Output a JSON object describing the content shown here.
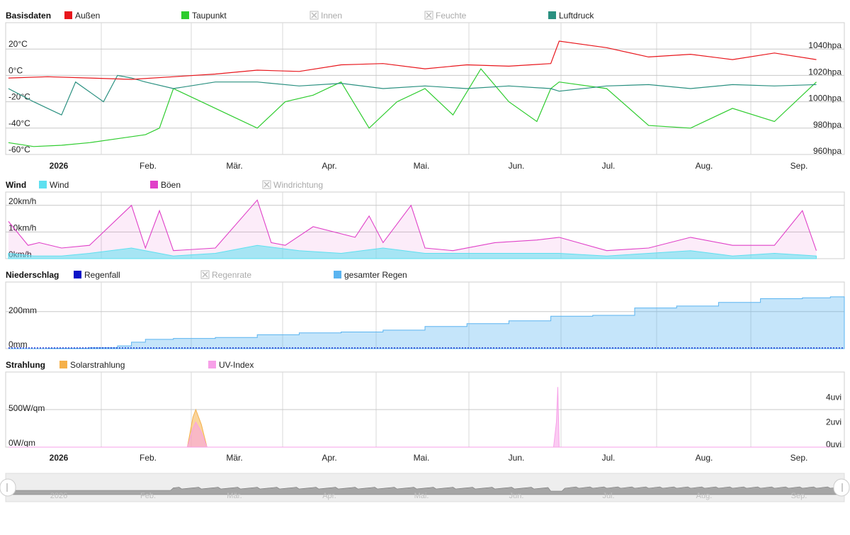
{
  "x_months": [
    "2026",
    "Feb.",
    "Mär.",
    "Apr.",
    "Mai.",
    "Jun.",
    "Jul.",
    "Aug.",
    "Sep."
  ],
  "colors": {
    "aussen": "#e8161c",
    "taupunkt": "#2ecc2e",
    "luftdruck": "#2a9080",
    "wind": "#5ee0f0",
    "boeen": "#e040c8",
    "regenfall": "#0a14c8",
    "gesamter_regen": "#5ab4f0",
    "solar": "#f5b04a",
    "uv": "#f7a0e8"
  },
  "chart_data": [
    {
      "type": "line",
      "title": "Basisdaten",
      "legend": [
        {
          "label": "Außen",
          "color": "#e8161c",
          "enabled": true
        },
        {
          "label": "Taupunkt",
          "color": "#2ecc2e",
          "enabled": true
        },
        {
          "label": "Innen",
          "enabled": false
        },
        {
          "label": "Feuchte",
          "enabled": false
        },
        {
          "label": "Luftdruck",
          "color": "#2a9080",
          "enabled": true
        }
      ],
      "y_left_ticks": [
        "20°C",
        "0°C",
        "-20°C",
        "-40°C",
        "-60°C"
      ],
      "y_right_ticks": [
        "1040hpa",
        "1020hpa",
        "1000hpa",
        "980hpa",
        "960hpa"
      ],
      "ylim_left": [
        -60,
        40
      ],
      "ylim_right": [
        960,
        1060
      ],
      "series": [
        {
          "name": "Außen",
          "axis": "left",
          "x": [
            1,
            15,
            30,
            45,
            60,
            75,
            90,
            105,
            120,
            135,
            150,
            165,
            180,
            195,
            198,
            215,
            230,
            245,
            260,
            275,
            290
          ],
          "y": [
            -2,
            -1,
            -2,
            -3,
            -1,
            1,
            4,
            3,
            8,
            9,
            5,
            8,
            7,
            9,
            26,
            21,
            14,
            16,
            12,
            17,
            12
          ]
        },
        {
          "name": "Taupunkt",
          "axis": "left",
          "x": [
            1,
            10,
            20,
            30,
            40,
            50,
            55,
            60,
            70,
            80,
            90,
            100,
            110,
            120,
            130,
            140,
            150,
            160,
            170,
            180,
            190,
            195,
            198,
            215,
            230,
            245,
            260,
            275,
            290
          ],
          "y": [
            -51,
            -54,
            -53,
            -51,
            -48,
            -45,
            -40,
            -10,
            -20,
            -30,
            -40,
            -20,
            -15,
            -5,
            -40,
            -20,
            -10,
            -30,
            5,
            -20,
            -35,
            -10,
            -5,
            -10,
            -38,
            -40,
            -25,
            -35,
            -5
          ]
        },
        {
          "name": "Luftdruck",
          "axis": "right",
          "x": [
            1,
            10,
            15,
            20,
            25,
            35,
            40,
            45,
            50,
            60,
            75,
            90,
            105,
            120,
            135,
            150,
            165,
            180,
            195,
            198,
            215,
            230,
            245,
            260,
            275,
            290
          ],
          "y": [
            1010,
            1000,
            995,
            990,
            1015,
            1000,
            1020,
            1018,
            1015,
            1010,
            1015,
            1015,
            1012,
            1014,
            1010,
            1012,
            1010,
            1012,
            1010,
            1008,
            1012,
            1013,
            1010,
            1013,
            1012,
            1013
          ]
        }
      ]
    },
    {
      "type": "area",
      "title": "Wind",
      "legend": [
        {
          "label": "Wind",
          "color": "#5ee0f0",
          "enabled": true
        },
        {
          "label": "Böen",
          "color": "#e040c8",
          "enabled": true
        },
        {
          "label": "Windrichtung",
          "enabled": false
        }
      ],
      "y_ticks": [
        "20km/h",
        "10km/h",
        "0km/h"
      ],
      "ylim": [
        0,
        25
      ],
      "series": [
        {
          "name": "Böen",
          "x": [
            1,
            8,
            12,
            20,
            30,
            45,
            50,
            55,
            60,
            75,
            90,
            95,
            100,
            110,
            125,
            130,
            135,
            145,
            150,
            160,
            175,
            190,
            198,
            215,
            230,
            245,
            260,
            275,
            285,
            290
          ],
          "y": [
            14,
            5,
            6,
            4,
            5,
            20,
            4,
            18,
            3,
            4,
            22,
            6,
            5,
            12,
            8,
            16,
            6,
            20,
            4,
            3,
            6,
            7,
            8,
            3,
            4,
            8,
            5,
            5,
            18,
            3
          ]
        },
        {
          "name": "Wind",
          "x": [
            1,
            10,
            20,
            30,
            45,
            60,
            75,
            90,
            105,
            120,
            135,
            150,
            165,
            180,
            198,
            215,
            230,
            245,
            260,
            275,
            290
          ],
          "y": [
            2,
            1,
            1,
            2,
            4,
            1,
            2,
            5,
            3,
            2,
            4,
            2,
            2,
            2,
            2,
            1,
            2,
            3,
            1,
            2,
            1
          ]
        }
      ]
    },
    {
      "type": "area",
      "title": "Niederschlag",
      "legend": [
        {
          "label": "Regenfall",
          "color": "#0a14c8",
          "enabled": true
        },
        {
          "label": "Regenrate",
          "enabled": false
        },
        {
          "label": "gesamter Regen",
          "color": "#5ab4f0",
          "enabled": true
        }
      ],
      "y_ticks": [
        "200mm",
        "0mm"
      ],
      "ylim": [
        0,
        360
      ],
      "series": [
        {
          "name": "gesamter Regen",
          "x": [
            1,
            15,
            30,
            40,
            45,
            50,
            60,
            75,
            90,
            105,
            120,
            135,
            150,
            165,
            180,
            195,
            210,
            225,
            240,
            255,
            270,
            285,
            295
          ],
          "y": [
            0,
            2,
            5,
            15,
            35,
            50,
            55,
            60,
            75,
            85,
            90,
            100,
            120,
            135,
            150,
            175,
            180,
            220,
            230,
            250,
            270,
            275,
            280
          ]
        },
        {
          "name": "Regenfall",
          "x": [
            1,
            50,
            100,
            150,
            200,
            250,
            295
          ],
          "y": [
            0,
            0,
            0,
            0,
            0,
            0,
            0
          ]
        }
      ]
    },
    {
      "type": "area",
      "title": "Strahlung",
      "legend": [
        {
          "label": "Solarstrahlung",
          "color": "#f5b04a",
          "enabled": true
        },
        {
          "label": "UV-Index",
          "color": "#f7a0e8",
          "enabled": true
        }
      ],
      "y_left_ticks": [
        "500W/qm",
        "0W/qm"
      ],
      "y_right_ticks": [
        "4uvi",
        "2uvi",
        "0uvi"
      ],
      "ylim_left": [
        0,
        1000
      ],
      "ylim_right": [
        0,
        6
      ],
      "series": [
        {
          "name": "Solarstrahlung",
          "axis": "left",
          "x": [
            1,
            65,
            67,
            68,
            70,
            72,
            295
          ],
          "y": [
            0,
            0,
            400,
            500,
            300,
            0,
            0
          ]
        },
        {
          "name": "UV-Index",
          "axis": "right",
          "x": [
            1,
            65,
            67,
            68,
            70,
            72,
            196,
            197,
            197.5,
            198,
            295
          ],
          "y": [
            0,
            0,
            1.5,
            2,
            1.2,
            0,
            0,
            2,
            4.8,
            0,
            0
          ]
        }
      ]
    }
  ],
  "navigator": {
    "labels": [
      "2026",
      "Feb.",
      "Mär.",
      "Apr.",
      "Mai.",
      "Jun.",
      "Jul.",
      "Aug.",
      "Sep."
    ]
  }
}
